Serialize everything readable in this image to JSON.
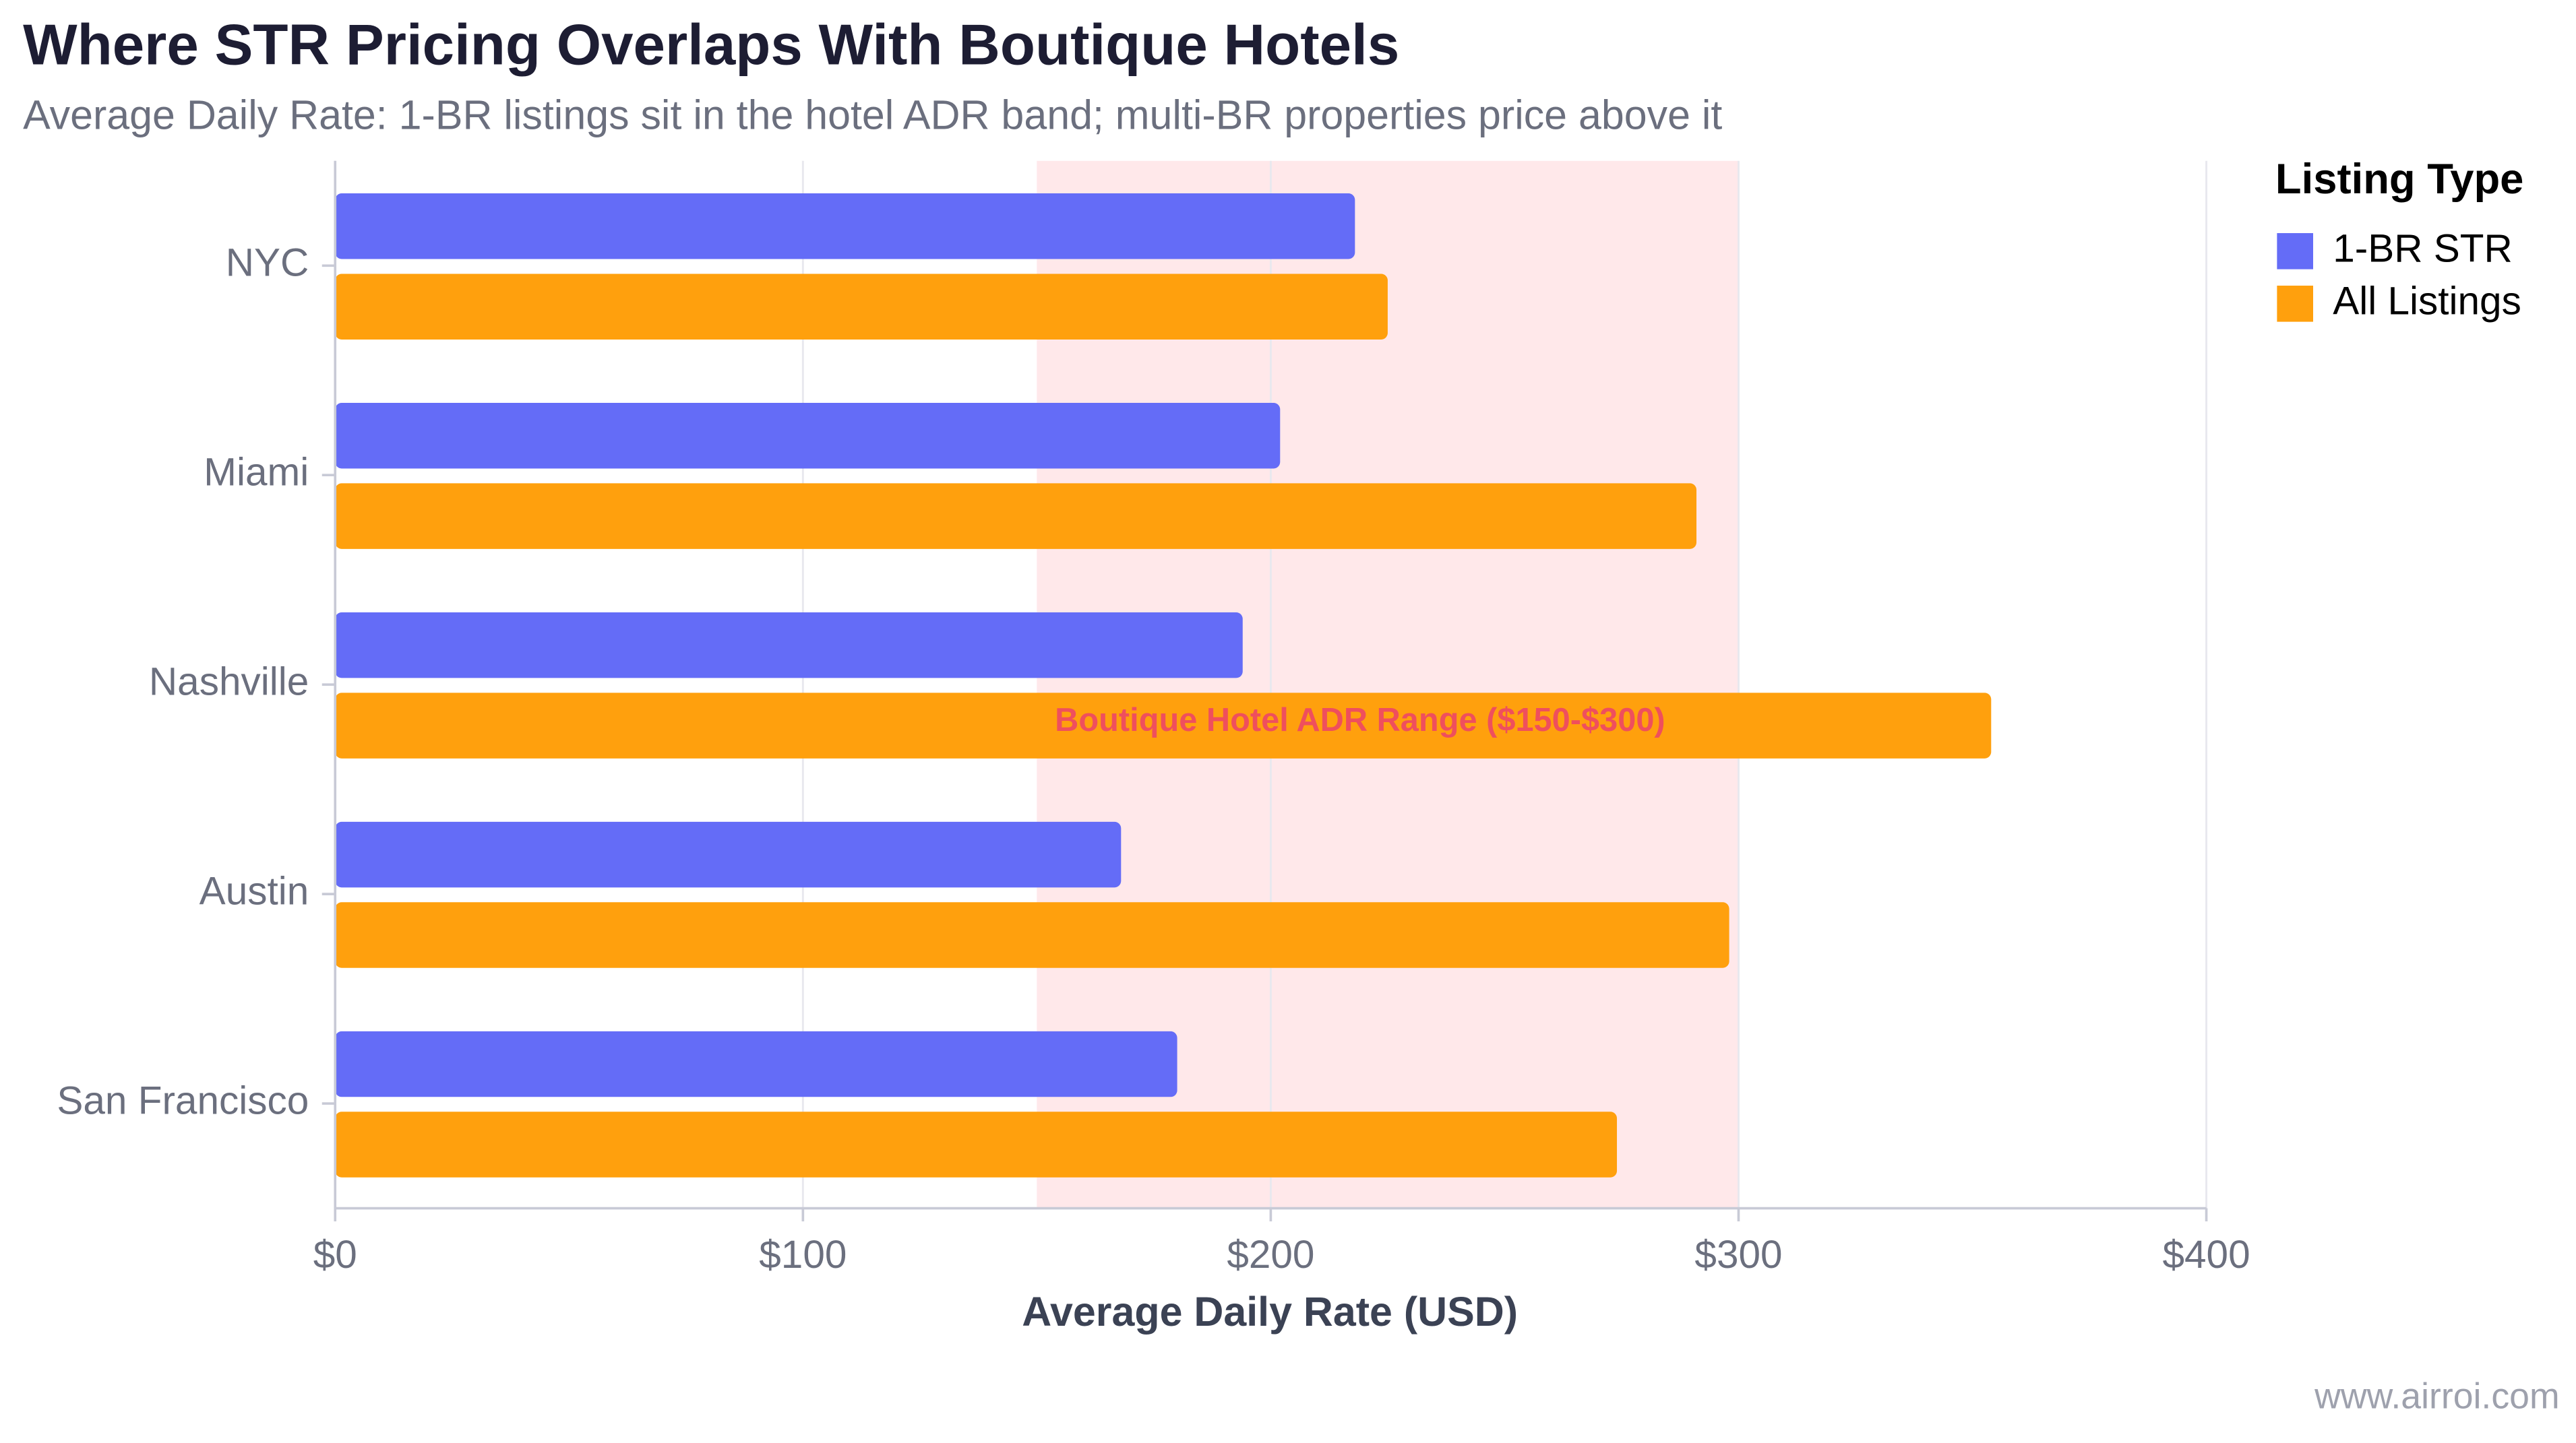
{
  "chart_data": {
    "type": "hbar",
    "title": "Where STR Pricing Overlaps With Boutique Hotels",
    "subtitle": "Average Daily Rate: 1-BR listings sit in the hotel ADR band; multi-BR properties price above it",
    "x_label": "Average Daily Rate (USD)",
    "categories": [
      "NYC",
      "Miami",
      "Nashville",
      "Austin",
      "San Francisco"
    ],
    "series": [
      {
        "name": "1-BR STR",
        "color": "#646cf7",
        "values": [
          218,
          202,
          194,
          168,
          180
        ]
      },
      {
        "name": "All Listings",
        "color": "#ffa00d",
        "values": [
          225,
          291,
          354,
          298,
          274
        ]
      }
    ],
    "xlim": [
      0,
      400
    ],
    "xticks": [
      {
        "value": 0,
        "label": "$0"
      },
      {
        "value": 100,
        "label": "$100"
      },
      {
        "value": 200,
        "label": "$200"
      },
      {
        "value": 300,
        "label": "$300"
      },
      {
        "value": 400,
        "label": "$400"
      }
    ],
    "grid": true,
    "band": [
      150,
      300
    ],
    "band_color": "#ffe8ea",
    "annotation": "Boutique Hotel ADR Range ($150-$300)",
    "legend_title": "Listing Type",
    "legend_position": "right",
    "source": "www.airroi.com"
  }
}
